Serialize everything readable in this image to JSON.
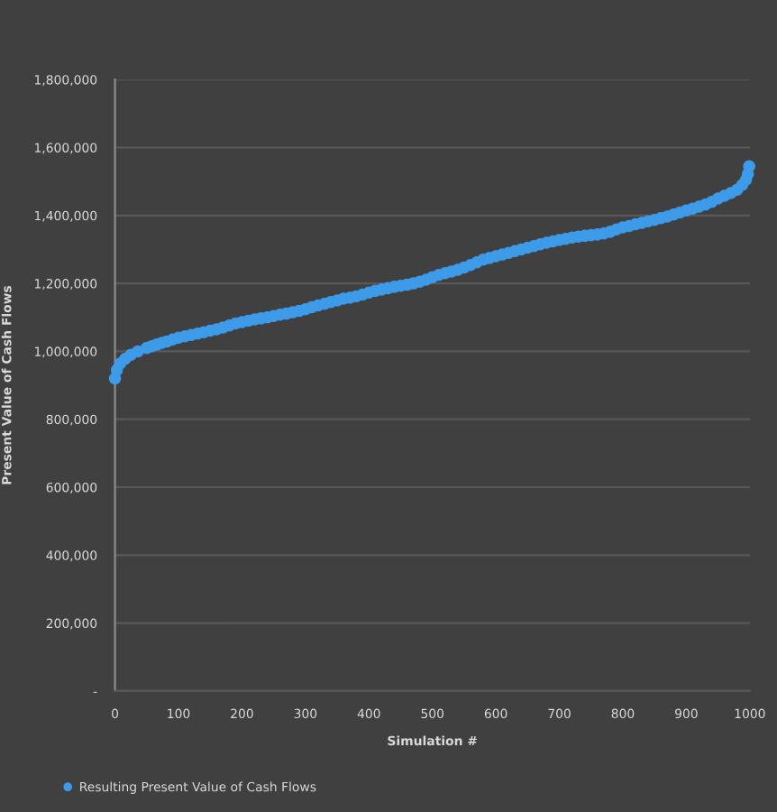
{
  "chart_data": {
    "type": "scatter",
    "xlabel": "Simulation #",
    "ylabel": "Present Value of Cash Flows",
    "x": [
      0,
      3,
      8,
      16,
      25,
      36,
      50,
      58,
      66,
      74,
      82,
      91,
      100,
      110,
      120,
      130,
      140,
      150,
      160,
      170,
      180,
      190,
      200,
      210,
      220,
      230,
      240,
      250,
      260,
      270,
      280,
      290,
      300,
      310,
      320,
      330,
      340,
      350,
      360,
      370,
      380,
      390,
      400,
      410,
      420,
      430,
      440,
      450,
      460,
      470,
      480,
      490,
      500,
      510,
      520,
      530,
      540,
      550,
      560,
      570,
      580,
      590,
      600,
      610,
      620,
      630,
      640,
      650,
      660,
      670,
      680,
      690,
      700,
      710,
      720,
      730,
      740,
      750,
      760,
      770,
      780,
      790,
      800,
      810,
      820,
      830,
      840,
      850,
      860,
      870,
      880,
      890,
      900,
      910,
      920,
      930,
      940,
      950,
      960,
      970,
      980,
      988,
      994,
      997,
      999
    ],
    "series": [
      {
        "name": "Resulting Present Value of Cash Flows",
        "color": "#3d9be9",
        "values": [
          920000,
          945000,
          964000,
          978000,
          990000,
          1000000,
          1010000,
          1015000,
          1020000,
          1025000,
          1029000,
          1035000,
          1040000,
          1044000,
          1048000,
          1052000,
          1056000,
          1061000,
          1065000,
          1070000,
          1076000,
          1082000,
          1086000,
          1090000,
          1094000,
          1097000,
          1100000,
          1104000,
          1108000,
          1111000,
          1115000,
          1119000,
          1124000,
          1130000,
          1135000,
          1140000,
          1145000,
          1150000,
          1155000,
          1158000,
          1162000,
          1167000,
          1173000,
          1178000,
          1182000,
          1186000,
          1190000,
          1193000,
          1196000,
          1200000,
          1205000,
          1211000,
          1218000,
          1225000,
          1230000,
          1235000,
          1240000,
          1247000,
          1254000,
          1262000,
          1270000,
          1275000,
          1280000,
          1285000,
          1290000,
          1295000,
          1300000,
          1305000,
          1310000,
          1315000,
          1320000,
          1324000,
          1328000,
          1331000,
          1335000,
          1338000,
          1340000,
          1342000,
          1344000,
          1347000,
          1352000,
          1359000,
          1365000,
          1369000,
          1374000,
          1378000,
          1383000,
          1387000,
          1392000,
          1397000,
          1403000,
          1409000,
          1415000,
          1420000,
          1426000,
          1432000,
          1440000,
          1450000,
          1458000,
          1466000,
          1476000,
          1490000,
          1505000,
          1522000,
          1545000
        ]
      }
    ],
    "xlim": [
      0,
      1000
    ],
    "xticks": [
      0,
      100,
      200,
      300,
      400,
      500,
      600,
      700,
      800,
      900,
      1000
    ],
    "ylim": [
      0,
      1800000
    ],
    "yticks": [
      {
        "value": 0,
        "label": "-"
      },
      {
        "value": 200000,
        "label": "200,000"
      },
      {
        "value": 400000,
        "label": "400,000"
      },
      {
        "value": 600000,
        "label": "600,000"
      },
      {
        "value": 800000,
        "label": "800,000"
      },
      {
        "value": 1000000,
        "label": "1,000,000"
      },
      {
        "value": 1200000,
        "label": "1,200,000"
      },
      {
        "value": 1400000,
        "label": "1,400,000"
      },
      {
        "value": 1600000,
        "label": "1,600,000"
      },
      {
        "value": 1800000,
        "label": "1,800,000"
      }
    ],
    "grid": "y",
    "legend": "bottom left",
    "marker": "circle"
  }
}
